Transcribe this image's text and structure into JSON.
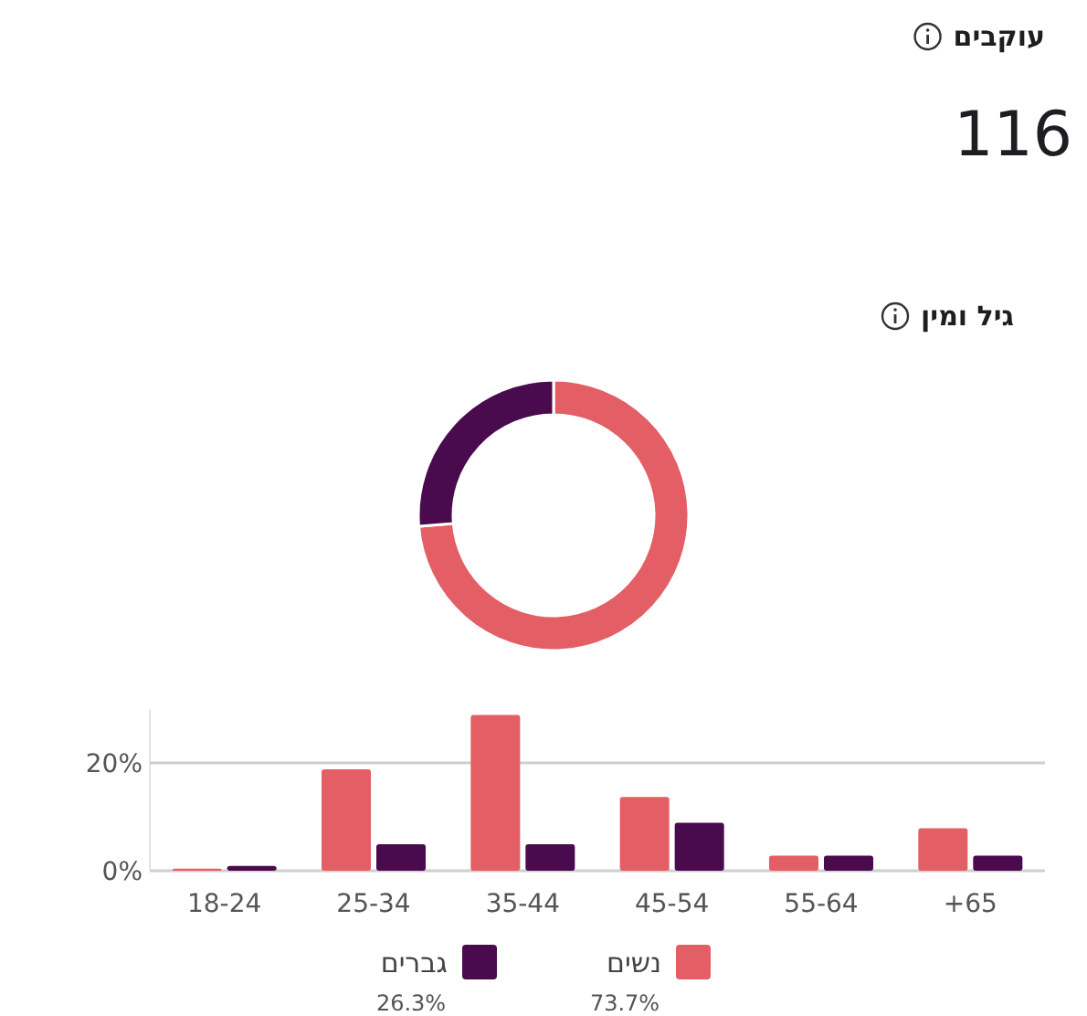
{
  "chart_data": [
    {
      "type": "other",
      "title": "עוקבים",
      "annotations": [
        "116"
      ]
    },
    {
      "type": "donut",
      "title": "גיל ומין",
      "categories": [
        "נשים",
        "גברים"
      ],
      "values": [
        73.7,
        26.3
      ],
      "colors": [
        "#e35f65",
        "#4a0a4e"
      ],
      "value_labels": [
        "73.7%",
        "26.3%"
      ],
      "legend": "bottom"
    },
    {
      "type": "bar",
      "categories": [
        "18-24",
        "25-34",
        "35-44",
        "45-54",
        "55-64",
        "+65"
      ],
      "series": [
        {
          "color": "#e35f65",
          "values": [
            0.4,
            18.8,
            28.9,
            13.7,
            2.8,
            7.9
          ]
        },
        {
          "color": "#4a0a4e",
          "values": [
            0.9,
            4.9,
            4.9,
            8.9,
            2.8,
            2.8
          ]
        }
      ],
      "ylim": [
        0,
        30
      ],
      "yticks": [
        {
          "value": 0,
          "label": "0%"
        },
        {
          "value": 20,
          "label": "20%"
        }
      ],
      "grid": "y"
    }
  ]
}
